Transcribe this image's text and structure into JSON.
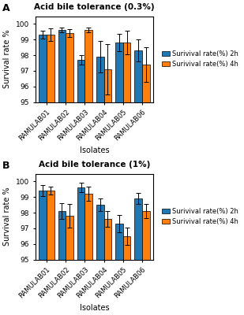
{
  "chart_data": [
    {
      "type": "bar",
      "title": "Acid bile tolerance (0.3%)",
      "categories": [
        "RAMULAB01",
        "RAMULAB02",
        "RAMULAB03",
        "RAMULAB04",
        "RAMULAB05",
        "RAMULAB06"
      ],
      "series": [
        {
          "name": "Surivival rate(%) 2h",
          "values": [
            99.3,
            99.6,
            97.7,
            97.9,
            98.8,
            98.3
          ],
          "errors": [
            0.25,
            0.15,
            0.3,
            1.0,
            0.55,
            0.7
          ]
        },
        {
          "name": "Surivival rate(%) 4h",
          "values": [
            99.3,
            99.4,
            99.6,
            97.1,
            98.8,
            97.4
          ],
          "errors": [
            0.4,
            0.25,
            0.15,
            1.6,
            0.75,
            1.1
          ]
        }
      ],
      "x_label": "Isolates",
      "y_label": "Survival rate %",
      "ylim": [
        95,
        100.5
      ],
      "yticks": [
        95,
        96,
        97,
        98,
        99,
        100
      ],
      "legend": "right",
      "grid": false,
      "annotations": [
        "A"
      ]
    },
    {
      "type": "bar",
      "title": "Acid bile tolerance (1%)",
      "categories": [
        "RAMULAB01",
        "RAMULAB02",
        "RAMULAB03",
        "RAMULAB04",
        "RAMULAB05",
        "RAMULAB06"
      ],
      "series": [
        {
          "name": "Surivival rate(%) 2h",
          "values": [
            99.4,
            98.1,
            99.6,
            98.5,
            97.3,
            98.9
          ],
          "errors": [
            0.35,
            0.5,
            0.3,
            0.4,
            0.55,
            0.35
          ]
        },
        {
          "name": "Surivival rate(%) 4h",
          "values": [
            99.4,
            97.8,
            99.2,
            97.6,
            96.5,
            98.1
          ],
          "errors": [
            0.25,
            0.75,
            0.45,
            0.5,
            0.55,
            0.45
          ]
        }
      ],
      "x_label": "Isolates",
      "y_label": "Survival rate %",
      "ylim": [
        95,
        100.5
      ],
      "yticks": [
        95,
        96,
        97,
        98,
        99,
        100
      ],
      "legend": "right",
      "grid": false,
      "annotations": [
        "B"
      ]
    }
  ]
}
